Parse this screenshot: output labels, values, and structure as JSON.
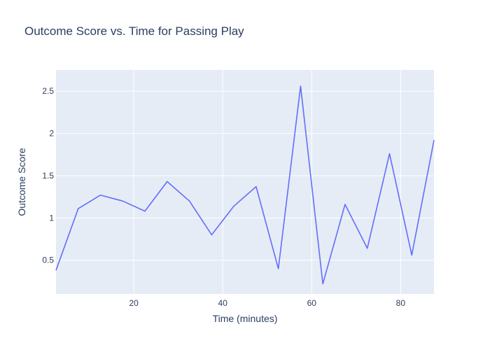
{
  "chart_data": {
    "type": "line",
    "title": "Outcome Score vs. Time for Passing Play",
    "xlabel": "Time (minutes)",
    "ylabel": "Outcome Score",
    "xlim": [
      2.5,
      87.5
    ],
    "ylim": [
      0.1,
      2.75
    ],
    "x_ticks": [
      20,
      40,
      60,
      80
    ],
    "y_ticks": [
      0.5,
      1,
      1.5,
      2,
      2.5
    ],
    "x_tick_labels": [
      "20",
      "40",
      "60",
      "80"
    ],
    "y_tick_labels": [
      "0.5",
      "1",
      "1.5",
      "2",
      "2.5"
    ],
    "grid": true,
    "colors": {
      "plot_bg": "#e5ecf6",
      "grid": "#ffffff",
      "line": "#636efa",
      "text": "#2a3f5f"
    },
    "series": [
      {
        "x": [
          2.5,
          7.5,
          12.5,
          17.5,
          22.5,
          27.5,
          32.5,
          37.5,
          42.5,
          47.5,
          52.5,
          57.5,
          62.5,
          67.5,
          72.5,
          77.5,
          82.5,
          87.5
        ],
        "values": [
          0.38,
          1.11,
          1.27,
          1.2,
          1.08,
          1.43,
          1.2,
          0.8,
          1.14,
          1.37,
          0.4,
          2.56,
          0.22,
          1.16,
          0.64,
          1.76,
          0.56,
          1.92
        ]
      }
    ]
  }
}
